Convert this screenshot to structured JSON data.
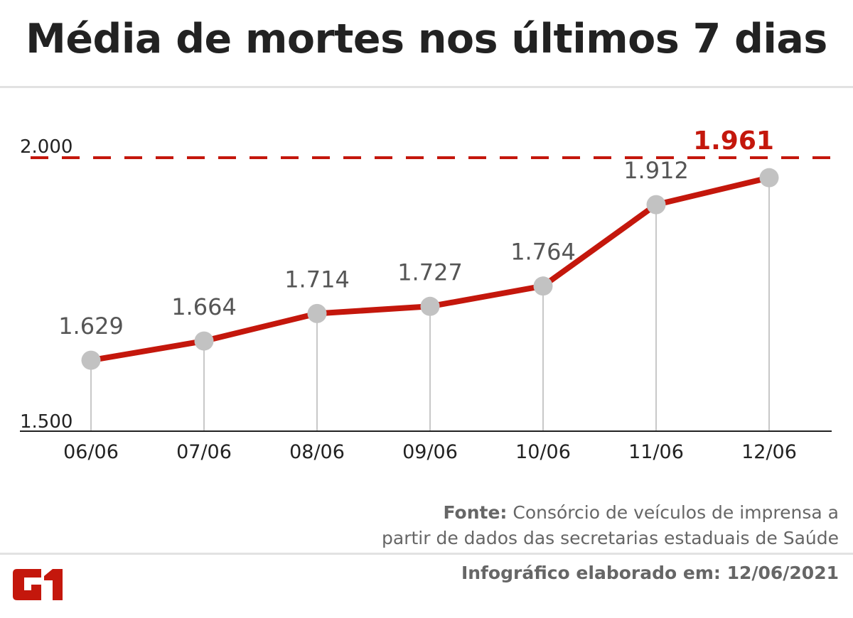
{
  "title": "Média de mortes nos últimos 7 dias",
  "chart_data": {
    "type": "line",
    "title": "Média de mortes nos últimos 7 dias",
    "categories": [
      "06/06",
      "07/06",
      "08/06",
      "09/06",
      "10/06",
      "11/06",
      "12/06"
    ],
    "values": [
      1629,
      1664,
      1714,
      1727,
      1764,
      1912,
      1961
    ],
    "value_labels": [
      "1.629",
      "1.664",
      "1.714",
      "1.727",
      "1.764",
      "1.912",
      "1.961"
    ],
    "y_ticks": [
      {
        "value": 1500,
        "label": "1.500"
      },
      {
        "value": 2000,
        "label": "2.000"
      }
    ],
    "ylim": [
      1500,
      2000
    ],
    "reference_line": {
      "value": 2000,
      "style": "dashed"
    },
    "highlight_last": true,
    "grid": false,
    "colors": {
      "line": "#c4170c",
      "marker": "#c2c2c2",
      "highlight": "#c4170c",
      "label": "#555555"
    }
  },
  "source": {
    "prefix": "Fonte:",
    "line1": "Consórcio de veículos de imprensa a",
    "line2": "partir de dados das secretarias estaduais de Saúde"
  },
  "footer": "Infográfico elaborado em: 12/06/2021",
  "logo_text": "G1"
}
